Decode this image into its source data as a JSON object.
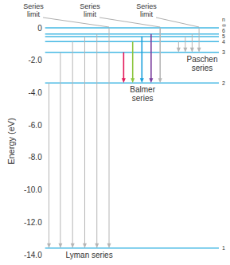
{
  "chart_data": {
    "type": "energy_levels",
    "ylabel": "Energy (eV)",
    "ylim": [
      -14,
      0
    ],
    "yticks": [
      {
        "value": -14,
        "label": "-14.0"
      },
      {
        "value": -12,
        "label": "-12.0"
      },
      {
        "value": -10,
        "label": "-10.0"
      },
      {
        "value": -8,
        "label": "-8.0"
      },
      {
        "value": -6,
        "label": "-6.0"
      },
      {
        "value": -4,
        "label": "-4.0"
      },
      {
        "value": -2,
        "label": "-2.0"
      },
      0
    ],
    "level_header": "n",
    "levels": [
      {
        "label": "1",
        "energy": -13.6,
        "color": "#45b8e3"
      },
      {
        "label": "2",
        "energy": -3.4,
        "color": "#45b8e3"
      },
      {
        "label": "3",
        "energy": -1.51,
        "color": "#45b8e3"
      },
      {
        "label": "4",
        "energy": -0.85,
        "color": "#45b8e3"
      },
      {
        "label": "5",
        "energy": -0.54,
        "color": "#45b8e3"
      },
      {
        "label": "6",
        "energy": -0.38,
        "color": "#45b8e3"
      },
      {
        "label": "∞",
        "energy": 0,
        "color": "#45b8e3"
      }
    ],
    "series": [
      {
        "name": "Lyman series",
        "limit_label": "Series limit",
        "color": "#b5b5b5",
        "lower": -13.6,
        "values": [
          -3.4,
          -1.51,
          -0.85,
          -0.54,
          -0.38,
          0
        ]
      },
      {
        "name": "Balmer series",
        "limit_label": "Series limit",
        "colors": [
          "#e3195a",
          "#8dc63f",
          "#1aa0dc",
          "#7b3f9e",
          "#b5b5b5"
        ],
        "lower": -3.4,
        "values": [
          -1.51,
          -0.85,
          -0.54,
          -0.38,
          0
        ]
      },
      {
        "name": "Paschen series",
        "limit_label": "Series limit",
        "color": "#b5b5b5",
        "lower": -1.51,
        "values": [
          -0.85,
          -0.54,
          -0.38,
          0
        ]
      }
    ]
  }
}
